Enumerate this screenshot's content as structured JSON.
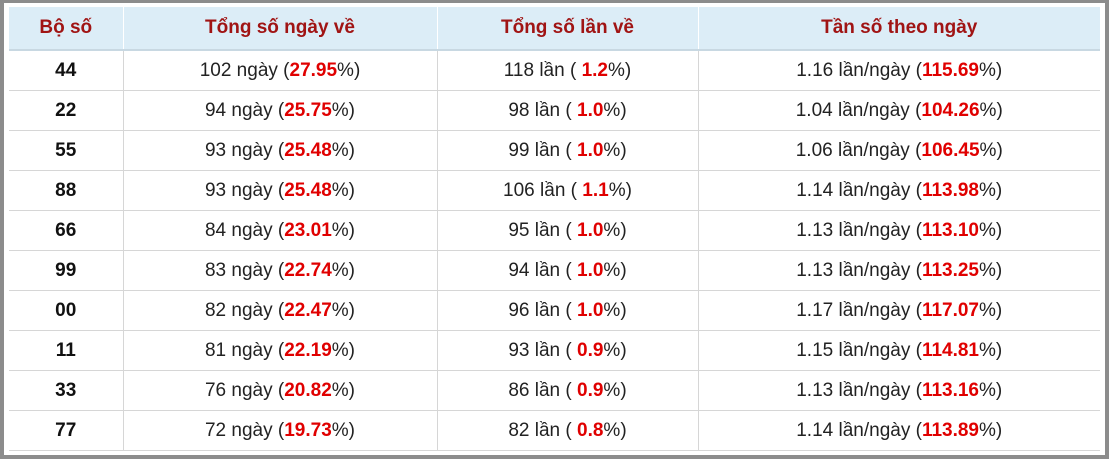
{
  "table": {
    "header": [
      "Bộ số",
      "Tổng số ngày về",
      "Tổng số lần về",
      "Tần số theo ngày"
    ],
    "rows": [
      [
        {
          "text": "44"
        },
        {
          "pre": "102 ngày (",
          "hl": "27.95",
          "post": "%)"
        },
        {
          "pre": "118 lần ( ",
          "hl": "1.2",
          "post": "%)"
        },
        {
          "pre": "1.16 lần/ngày (",
          "hl": "115.69",
          "post": "%)"
        }
      ],
      [
        {
          "text": "22"
        },
        {
          "pre": "94 ngày (",
          "hl": "25.75",
          "post": "%)"
        },
        {
          "pre": "98 lần ( ",
          "hl": "1.0",
          "post": "%)"
        },
        {
          "pre": "1.04 lần/ngày (",
          "hl": "104.26",
          "post": "%)"
        }
      ],
      [
        {
          "text": "55"
        },
        {
          "pre": "93 ngày (",
          "hl": "25.48",
          "post": "%)"
        },
        {
          "pre": "99 lần ( ",
          "hl": "1.0",
          "post": "%)"
        },
        {
          "pre": "1.06 lần/ngày (",
          "hl": "106.45",
          "post": "%)"
        }
      ],
      [
        {
          "text": "88"
        },
        {
          "pre": "93 ngày (",
          "hl": "25.48",
          "post": "%)"
        },
        {
          "pre": "106 lần ( ",
          "hl": "1.1",
          "post": "%)"
        },
        {
          "pre": "1.14 lần/ngày (",
          "hl": "113.98",
          "post": "%)"
        }
      ],
      [
        {
          "text": "66"
        },
        {
          "pre": "84 ngày (",
          "hl": "23.01",
          "post": "%)"
        },
        {
          "pre": "95 lần ( ",
          "hl": "1.0",
          "post": "%)"
        },
        {
          "pre": "1.13 lần/ngày (",
          "hl": "113.10",
          "post": "%)"
        }
      ],
      [
        {
          "text": "99"
        },
        {
          "pre": "83 ngày (",
          "hl": "22.74",
          "post": "%)"
        },
        {
          "pre": "94 lần ( ",
          "hl": "1.0",
          "post": "%)"
        },
        {
          "pre": "1.13 lần/ngày (",
          "hl": "113.25",
          "post": "%)"
        }
      ],
      [
        {
          "text": "00"
        },
        {
          "pre": "82 ngày (",
          "hl": "22.47",
          "post": "%)"
        },
        {
          "pre": "96 lần ( ",
          "hl": "1.0",
          "post": "%)"
        },
        {
          "pre": "1.17 lần/ngày (",
          "hl": "117.07",
          "post": "%)"
        }
      ],
      [
        {
          "text": "11"
        },
        {
          "pre": "81 ngày (",
          "hl": "22.19",
          "post": "%)"
        },
        {
          "pre": "93 lần ( ",
          "hl": "0.9",
          "post": "%)"
        },
        {
          "pre": "1.15 lần/ngày (",
          "hl": "114.81",
          "post": "%)"
        }
      ],
      [
        {
          "text": "33"
        },
        {
          "pre": "76 ngày (",
          "hl": "20.82",
          "post": "%)"
        },
        {
          "pre": "86 lần ( ",
          "hl": "0.9",
          "post": "%)"
        },
        {
          "pre": "1.13 lần/ngày (",
          "hl": "113.16",
          "post": "%)"
        }
      ],
      [
        {
          "text": "77"
        },
        {
          "pre": "72 ngày (",
          "hl": "19.73",
          "post": "%)"
        },
        {
          "pre": "82 lần ( ",
          "hl": "0.8",
          "post": "%)"
        },
        {
          "pre": "1.14 lần/ngày (",
          "hl": "113.89",
          "post": "%)"
        }
      ]
    ]
  }
}
